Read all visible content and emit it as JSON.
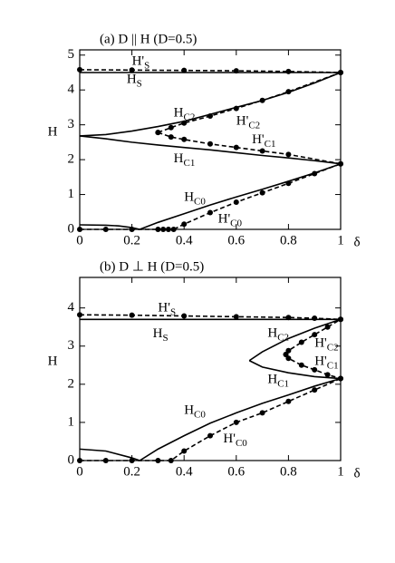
{
  "chart_data": [
    {
      "type": "line",
      "title": "(a) D || H (D=0.5)",
      "xlabel": "δ",
      "ylabel": "H",
      "xlim": [
        0,
        1
      ],
      "xticks": [
        0,
        0.2,
        0.4,
        0.6,
        0.8,
        1
      ],
      "ylim": [
        0,
        5.15
      ],
      "yticks": [
        0,
        1,
        2,
        3,
        4,
        5
      ],
      "series": [
        {
          "name": "H",
          "name_sub": "S",
          "color": "#000000",
          "style": "solid",
          "markers": false,
          "x": [
            0,
            1
          ],
          "values": [
            4.5,
            4.5
          ]
        },
        {
          "name": "H'",
          "name_sub": "S",
          "color": "#000000",
          "style": "dashed",
          "markers": true,
          "x": [
            0,
            0.2,
            0.4,
            0.6,
            0.8,
            1
          ],
          "values": [
            4.58,
            4.57,
            4.56,
            4.55,
            4.53,
            4.5
          ]
        },
        {
          "name": "H",
          "name_sub": "C2",
          "color": "#000000",
          "style": "solid",
          "markers": false,
          "x": [
            0,
            0.1,
            0.2,
            0.3,
            0.4,
            0.5,
            0.6,
            0.7,
            0.8,
            0.9,
            1
          ],
          "values": [
            2.68,
            2.72,
            2.82,
            2.95,
            3.1,
            3.3,
            3.5,
            3.7,
            3.93,
            4.2,
            4.5
          ]
        },
        {
          "name": "H",
          "name_sub": "C1",
          "color": "#000000",
          "style": "solid",
          "markers": false,
          "x": [
            0,
            0.1,
            0.2,
            0.3,
            0.4,
            0.5,
            0.6,
            0.7,
            0.8,
            0.9,
            1
          ],
          "values": [
            2.68,
            2.6,
            2.5,
            2.42,
            2.35,
            2.28,
            2.2,
            2.12,
            2.05,
            1.97,
            1.88
          ]
        },
        {
          "name": "H'",
          "name_sub": "C2",
          "color": "#000000",
          "style": "dashed",
          "markers": true,
          "x": [
            0.3,
            0.35,
            0.4,
            0.5,
            0.6,
            0.7,
            0.8,
            1
          ],
          "values": [
            2.78,
            2.92,
            3.05,
            3.25,
            3.47,
            3.7,
            3.95,
            4.5
          ]
        },
        {
          "name": "H'",
          "name_sub": "C1",
          "color": "#000000",
          "style": "dashed",
          "markers": true,
          "x": [
            0.3,
            0.35,
            0.4,
            0.5,
            0.6,
            0.7,
            0.8,
            1
          ],
          "values": [
            2.78,
            2.65,
            2.58,
            2.45,
            2.35,
            2.25,
            2.15,
            1.88
          ]
        },
        {
          "name": "H",
          "name_sub": "C0",
          "color": "#000000",
          "style": "solid",
          "markers": false,
          "x": [
            0,
            0.1,
            0.15,
            0.2,
            0.23,
            0.3,
            0.4,
            0.5,
            0.6,
            0.7,
            0.8,
            0.9,
            1
          ],
          "values": [
            0.13,
            0.12,
            0.1,
            0.05,
            0,
            0.2,
            0.45,
            0.7,
            0.93,
            1.15,
            1.38,
            1.62,
            1.88
          ]
        },
        {
          "name": "H'",
          "name_sub": "C0",
          "color": "#000000",
          "style": "dashed",
          "markers": true,
          "x": [
            0,
            0.1,
            0.2,
            0.3,
            0.32,
            0.34,
            0.36,
            0.4,
            0.5,
            0.6,
            0.7,
            0.8,
            0.9,
            1
          ],
          "values": [
            0,
            0,
            0,
            0,
            0,
            0,
            0,
            0.15,
            0.48,
            0.78,
            1.05,
            1.32,
            1.6,
            1.88
          ]
        }
      ]
    },
    {
      "type": "line",
      "title": "(b) D ⊥ H (D=0.5)",
      "xlabel": "δ",
      "ylabel": "H",
      "xlim": [
        0,
        1
      ],
      "xticks": [
        0,
        0.2,
        0.4,
        0.6,
        0.8,
        1
      ],
      "ylim": [
        0,
        4.8
      ],
      "yticks": [
        0,
        1,
        2,
        3,
        4
      ],
      "series": [
        {
          "name": "H",
          "name_sub": "S",
          "color": "#000000",
          "style": "solid",
          "markers": false,
          "x": [
            0,
            1
          ],
          "values": [
            3.7,
            3.7
          ]
        },
        {
          "name": "H'",
          "name_sub": "S",
          "color": "#000000",
          "style": "dashed",
          "markers": true,
          "x": [
            0,
            0.2,
            0.4,
            0.6,
            0.8,
            0.9,
            1
          ],
          "values": [
            3.82,
            3.81,
            3.79,
            3.77,
            3.75,
            3.73,
            3.7
          ]
        },
        {
          "name": "H",
          "name_sub": "C2",
          "color": "#000000",
          "style": "solid",
          "markers": false,
          "x": [
            0.65,
            0.7,
            0.8,
            0.9,
            1
          ],
          "values": [
            2.62,
            2.85,
            3.2,
            3.47,
            3.7
          ]
        },
        {
          "name": "H",
          "name_sub": "C1",
          "color": "#000000",
          "style": "solid",
          "markers": false,
          "x": [
            0.65,
            0.7,
            0.8,
            0.9,
            1
          ],
          "values": [
            2.62,
            2.45,
            2.3,
            2.2,
            2.15
          ]
        },
        {
          "name": "H'",
          "name_sub": "C2",
          "color": "#000000",
          "style": "dashed",
          "markers": true,
          "x": [
            0.79,
            0.8,
            0.85,
            0.9,
            0.95,
            1
          ],
          "values": [
            2.78,
            2.88,
            3.1,
            3.3,
            3.5,
            3.7
          ]
        },
        {
          "name": "H'",
          "name_sub": "C1",
          "color": "#000000",
          "style": "dashed",
          "markers": true,
          "x": [
            0.79,
            0.8,
            0.85,
            0.9,
            0.95,
            1
          ],
          "values": [
            2.78,
            2.68,
            2.5,
            2.38,
            2.25,
            2.15
          ]
        },
        {
          "name": "H",
          "name_sub": "C0",
          "color": "#000000",
          "style": "solid",
          "markers": false,
          "x": [
            0,
            0.1,
            0.2,
            0.23,
            0.3,
            0.4,
            0.5,
            0.6,
            0.7,
            0.8,
            0.9,
            1
          ],
          "values": [
            0.3,
            0.25,
            0.07,
            0,
            0.3,
            0.65,
            0.98,
            1.25,
            1.5,
            1.72,
            1.95,
            2.15
          ]
        },
        {
          "name": "H'",
          "name_sub": "C0",
          "color": "#000000",
          "style": "dashed",
          "markers": true,
          "x": [
            0,
            0.1,
            0.2,
            0.3,
            0.35,
            0.4,
            0.5,
            0.6,
            0.7,
            0.8,
            0.9,
            1
          ],
          "values": [
            0,
            0,
            0,
            0,
            0,
            0.25,
            0.65,
            1.0,
            1.25,
            1.55,
            1.85,
            2.15
          ]
        }
      ]
    }
  ]
}
